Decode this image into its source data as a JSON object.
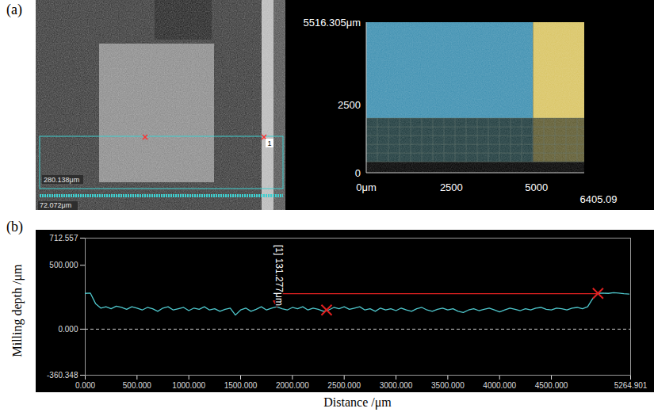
{
  "panel_a": {
    "label": "(a)",
    "left_image": {
      "labels": [
        "280.138μm",
        "72.072μm",
        "1"
      ]
    },
    "right_image": {
      "xlim": [
        0,
        6405.09
      ],
      "ylim": [
        0,
        5516.305
      ],
      "xticks": [
        {
          "value": 0,
          "label": "0μm"
        },
        2500,
        5000,
        6405.09
      ],
      "yticks": [
        0,
        2500,
        {
          "value": 5516.305,
          "label": "5516.305μm"
        }
      ],
      "regions": [
        {
          "x": [
            0,
            4900
          ],
          "y": [
            2000,
            5516.305
          ],
          "color": "#3d8fb0"
        },
        {
          "x": [
            4900,
            6405.09
          ],
          "y": [
            2000,
            5516.305
          ],
          "color": "#d9c463"
        },
        {
          "x": [
            0,
            4900
          ],
          "y": [
            400,
            2000
          ],
          "color": "#1d3a3c"
        },
        {
          "x": [
            4900,
            6405.09
          ],
          "y": [
            400,
            2000
          ],
          "color": "#5e5a30"
        }
      ]
    }
  },
  "chart_data": {
    "type": "line",
    "panel_label": "(b)",
    "x_label": "Distance /μm",
    "y_label": "Milling depth /μm",
    "xlim": [
      0,
      5264.901
    ],
    "ylim": [
      -360.348,
      712.557
    ],
    "xticks": [
      {
        "value": 0,
        "label": "0.000"
      },
      {
        "value": 500,
        "label": "500.000"
      },
      {
        "value": 1000,
        "label": "1000.000"
      },
      {
        "value": 1500,
        "label": "1500.000"
      },
      {
        "value": 2000,
        "label": "2000.000"
      },
      {
        "value": 2500,
        "label": "2500.000"
      },
      {
        "value": 3000,
        "label": "3000.000"
      },
      {
        "value": 3500,
        "label": "3500.000"
      },
      {
        "value": 4000,
        "label": "4000.000"
      },
      {
        "value": 4500,
        "label": "4500.000"
      },
      5264.901
    ],
    "yticks": [
      -360.348,
      {
        "value": 0,
        "label": "0.000"
      },
      {
        "value": 500,
        "label": "500.000"
      },
      712.557
    ],
    "grid": false,
    "baseline": {
      "value": 0,
      "line_style": "dashed"
    },
    "x": [
      0,
      50,
      100,
      150,
      200,
      250,
      300,
      350,
      400,
      450,
      500,
      550,
      600,
      650,
      700,
      750,
      800,
      850,
      900,
      950,
      1000,
      1050,
      1100,
      1150,
      1200,
      1250,
      1300,
      1350,
      1400,
      1450,
      1500,
      1550,
      1600,
      1650,
      1700,
      1750,
      1800,
      1850,
      1900,
      1950,
      2000,
      2050,
      2100,
      2150,
      2200,
      2250,
      2300,
      2350,
      2400,
      2450,
      2500,
      2550,
      2600,
      2650,
      2700,
      2750,
      2800,
      2850,
      2900,
      2950,
      3000,
      3050,
      3100,
      3150,
      3200,
      3250,
      3300,
      3350,
      3400,
      3450,
      3500,
      3550,
      3600,
      3650,
      3700,
      3750,
      3800,
      3850,
      3900,
      3950,
      4000,
      4050,
      4100,
      4150,
      4200,
      4250,
      4300,
      4350,
      4400,
      4450,
      4500,
      4550,
      4600,
      4650,
      4700,
      4750,
      4800,
      4850,
      4900,
      4950,
      5000,
      5050,
      5100,
      5150,
      5200,
      5250
    ],
    "series": [
      {
        "color": "#4fc7cc",
        "values": [
          280,
          282,
          200,
          165,
          175,
          160,
          180,
          170,
          155,
          175,
          165,
          150,
          170,
          160,
          140,
          165,
          175,
          150,
          160,
          170,
          145,
          165,
          155,
          175,
          150,
          160,
          140,
          155,
          165,
          110,
          150,
          165,
          140,
          155,
          175,
          150,
          165,
          175,
          160,
          150,
          170,
          160,
          175,
          150,
          165,
          155,
          140,
          150,
          170,
          160,
          175,
          155,
          165,
          175,
          150,
          160,
          140,
          165,
          150,
          160,
          145,
          165,
          150,
          140,
          160,
          170,
          150,
          140,
          155,
          165,
          150,
          160,
          140,
          130,
          150,
          160,
          145,
          155,
          165,
          150,
          135,
          150,
          165,
          155,
          145,
          160,
          150,
          165,
          170,
          155,
          150,
          165,
          160,
          150,
          165,
          170,
          160,
          175,
          240,
          280,
          282,
          280,
          285,
          282,
          278,
          275
        ]
      }
    ],
    "reference_line": {
      "x": [
        1850,
        4950
      ],
      "y": 278,
      "color": "#e02020"
    },
    "markers": [
      {
        "x": 1850,
        "y": 205,
        "marker": "arrow",
        "color": "#e02020"
      },
      {
        "x": 2330,
        "y": 150,
        "marker": "x",
        "color": "#e02020"
      },
      {
        "x": 4950,
        "y": 280,
        "marker": "x",
        "color": "#e02020"
      }
    ],
    "annotations": [
      {
        "text": "[1] 131.277μm",
        "x": 1870,
        "y": 660
      }
    ]
  }
}
